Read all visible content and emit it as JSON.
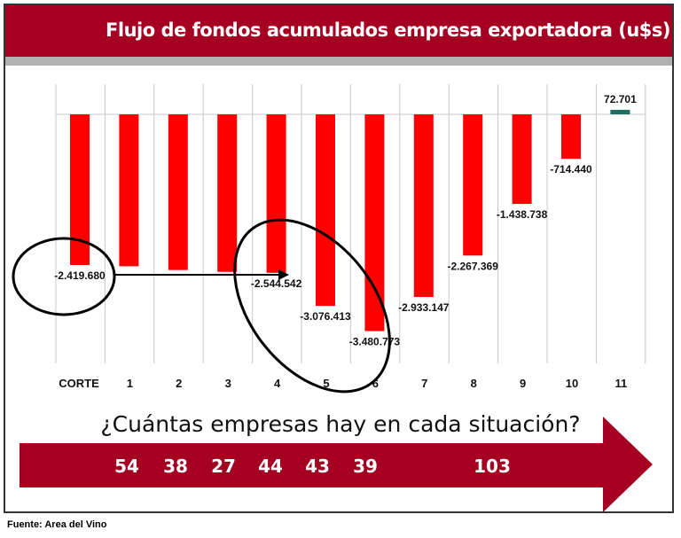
{
  "chart_data": {
    "type": "bar",
    "title": "Flujo de fondos acumulados empresa exportadora (u$s)",
    "categories": [
      "CORTE",
      "1",
      "2",
      "3",
      "4",
      "5",
      "6",
      "7",
      "8",
      "9",
      "10",
      "11"
    ],
    "values": [
      -2419680,
      -2440000,
      -2500000,
      -2530000,
      -2544542,
      -3076413,
      -3480773,
      -2933147,
      -2267369,
      -1438738,
      -714440,
      72701
    ],
    "data_labels": [
      "-2.419.680",
      "",
      "",
      "",
      "-2.544.542",
      "-3.076.413",
      "-3.480.773",
      "-2.933.147",
      "-2.267.369",
      "-1.438.738",
      "-714.440",
      "72.701"
    ],
    "colors": {
      "negative": "#ff0000",
      "positive": "#1f6e63",
      "banner": "#a50021"
    },
    "grid": "vertical",
    "annotations": {
      "question": "¿Cuántas empresas hay en cada situación?",
      "counts": [
        {
          "category": "1",
          "value": "54"
        },
        {
          "category": "2",
          "value": "38"
        },
        {
          "category": "3",
          "value": "27"
        },
        {
          "category": "4",
          "value": "44"
        },
        {
          "category": "5",
          "value": "43"
        },
        {
          "category": "6",
          "value": "39"
        },
        {
          "category": "8-9",
          "value": "103"
        }
      ]
    },
    "source": "Fuente: Area del Vino"
  }
}
